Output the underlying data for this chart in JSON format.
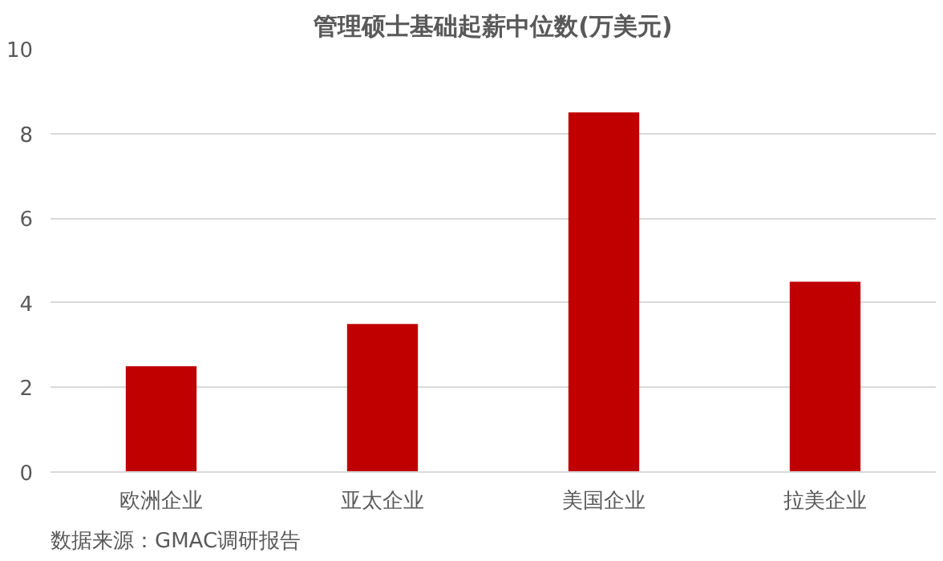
{
  "chart_data": {
    "type": "bar",
    "title": "管理硕士基础起薪中位数(万美元)",
    "categories": [
      "欧洲企业",
      "亚太企业",
      "美国企业",
      "拉美企业"
    ],
    "values": [
      2.5,
      3.5,
      8.5,
      4.5
    ],
    "color": "#c00000",
    "ylim": [
      0,
      10
    ],
    "yticks": [
      0,
      2,
      4,
      6,
      8,
      10
    ],
    "grid": "y",
    "annotations": [
      "数据来源：GMAC调研报告"
    ]
  }
}
